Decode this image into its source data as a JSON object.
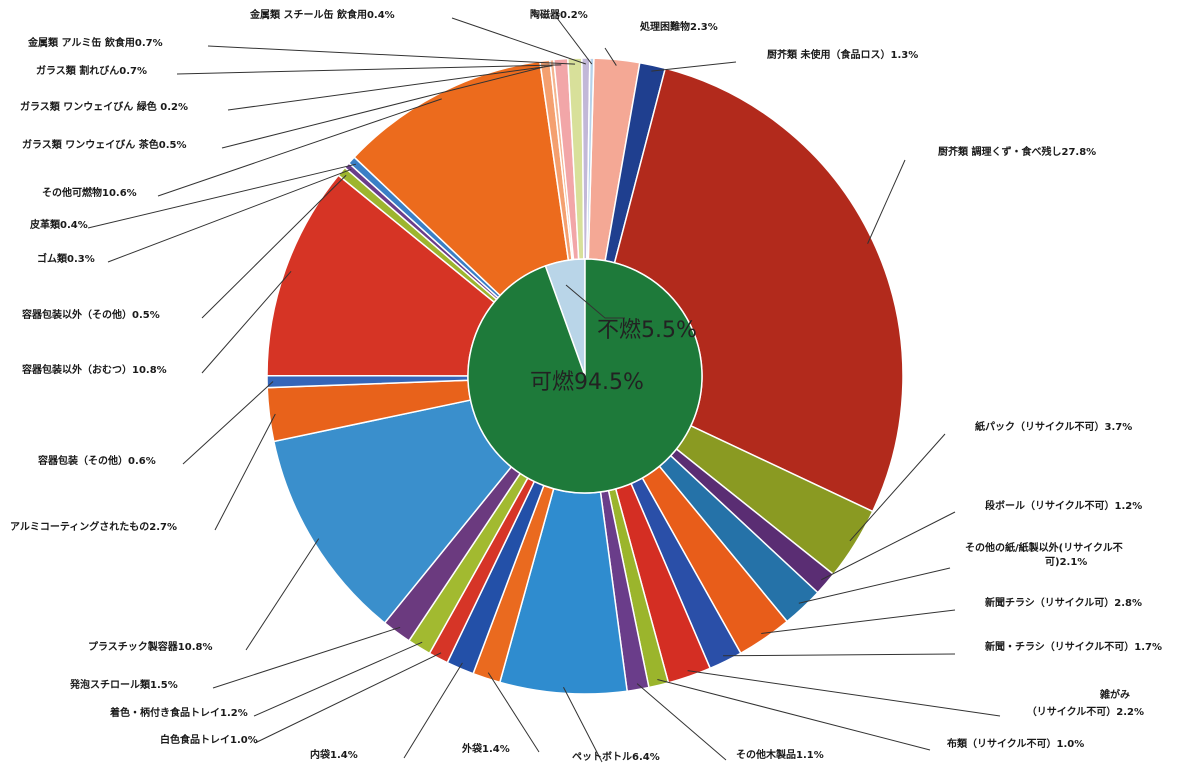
{
  "chart_data": {
    "type": "pie",
    "title": "",
    "inner": [
      {
        "label": "不燃",
        "value": 5.5,
        "text": "不燃5.5%",
        "color": "#b9d5e8"
      },
      {
        "label": "可燃",
        "value": 94.5,
        "text": "可燃94.5%",
        "color": "#1e7a3a"
      }
    ],
    "outer": [
      {
        "label": "処理困難物",
        "value": 2.3,
        "text": "処理困難物2.3%",
        "color": "#f4a895"
      },
      {
        "label": "厨芥類 未使用（食品ロス）",
        "value": 1.3,
        "text": "厨芥類 未使用（食品ロス）1.3%",
        "color": "#1f3f8f"
      },
      {
        "label": "厨芥類 調理くず・食べ残し",
        "value": 27.8,
        "text": "厨芥類 調理くず・食べ残し27.8%",
        "color": "#b22a1c"
      },
      {
        "label": "紙パック（リサイクル不可）",
        "value": 3.7,
        "text": "紙パック（リサイクル不可）3.7%",
        "color": "#8a9a22"
      },
      {
        "label": "段ボール（リサイクル不可）",
        "value": 1.2,
        "text": "段ボール（リサイクル不可）1.2%",
        "color": "#5a2d73"
      },
      {
        "label": "その他の紙／紙製以外（リサイクル不可）",
        "value": 2.1,
        "text": "その他の紙/紙製以外(リサイクル不可)2.1%",
        "color": "#2572a8"
      },
      {
        "label": "新聞チラシ（リサイクル可）",
        "value": 2.8,
        "text": "新聞チラシ（リサイクル可）2.8%",
        "color": "#e85d1a"
      },
      {
        "label": "新聞・チラシ（リサイクル不可）",
        "value": 1.7,
        "text": "新聞・チラシ（リサイクル不可）1.7%",
        "color": "#2a4fa8"
      },
      {
        "label": "雑がみ（リサイクル不可）",
        "value": 2.2,
        "text": "雑がみ（リサイクル不可）2.2%",
        "color": "#d42e23"
      },
      {
        "label": "布類（リサイクル不可）",
        "value": 1.0,
        "text": "布類（リサイクル不可）1.0%",
        "color": "#9bb52c"
      },
      {
        "label": "その他木製品",
        "value": 1.1,
        "text": "その他木製品1.1%",
        "color": "#6a3d8a"
      },
      {
        "label": "ペットボトル",
        "value": 6.4,
        "text": "ペットボトル6.4%",
        "color": "#2f8ccf"
      },
      {
        "label": "外袋",
        "value": 1.4,
        "text": "外袋1.4%",
        "color": "#ea6a1f"
      },
      {
        "label": "内袋",
        "value": 1.4,
        "text": "内袋1.4%",
        "color": "#2350a8"
      },
      {
        "label": "白色食品トレイ",
        "value": 1.0,
        "text": "白色食品トレイ1.0%",
        "color": "#d63527"
      },
      {
        "label": "着色・柄付き食品トレイ",
        "value": 1.2,
        "text": "着色・柄付き食品トレイ1.2%",
        "color": "#a2ba30"
      },
      {
        "label": "発泡スチロール類",
        "value": 1.5,
        "text": "発泡スチロール類1.5%",
        "color": "#6b3a7f"
      },
      {
        "label": "プラスチック製容器",
        "value": 10.8,
        "text": "プラスチック製容器10.8%",
        "color": "#3a8fcc"
      },
      {
        "label": "アルミコーティングされたもの",
        "value": 2.7,
        "text": "アルミコーティングされたもの2.7%",
        "color": "#e8621b"
      },
      {
        "label": "容器包装（その他）",
        "value": 0.6,
        "text": "容器包装（その他）0.6%",
        "color": "#3565b8"
      },
      {
        "label": "容器包装以外（おむつ）",
        "value": 10.8,
        "text": "容器包装以外（おむつ）10.8%",
        "color": "#d63425"
      },
      {
        "label": "容器包装以外（その他）",
        "value": 0.5,
        "text": "容器包装以外（その他）0.5%",
        "color": "#9db52e"
      },
      {
        "label": "ゴム類",
        "value": 0.3,
        "text": "ゴム類0.3%",
        "color": "#6a3d8a"
      },
      {
        "label": "皮革類",
        "value": 0.4,
        "text": "皮革類0.4%",
        "color": "#3a7fc6"
      },
      {
        "label": "その他可燃物",
        "value": 10.6,
        "text": "その他可燃物10.6%",
        "color": "#ec6b1d"
      },
      {
        "label": "ガラス類 ワンウェイびん 茶色",
        "value": 0.5,
        "text": "ガラス類 ワンウェイびん 茶色0.5%",
        "color": "#f4a070"
      },
      {
        "label": "ガラス類 ワンウェイびん 緑色",
        "value": 0.2,
        "text": "ガラス類 ワンウェイびん 緑色 0.2%",
        "color": "#f4b48f"
      },
      {
        "label": "ガラス類 割れびん",
        "value": 0.7,
        "text": "ガラス類 割れびん0.7%",
        "color": "#f2a6a8"
      },
      {
        "label": "金属類 アルミ缶 飲食用",
        "value": 0.7,
        "text": "金属類 アルミ缶 飲食用0.7%",
        "color": "#d8e09a"
      },
      {
        "label": "金属類 スチール缶 飲食用",
        "value": 0.4,
        "text": "金属類 スチール缶 飲食用0.4%",
        "color": "#c2b8d8"
      },
      {
        "label": "陶磁器",
        "value": 0.2,
        "text": "陶磁器0.2%",
        "color": "#b6d2ea"
      }
    ]
  }
}
